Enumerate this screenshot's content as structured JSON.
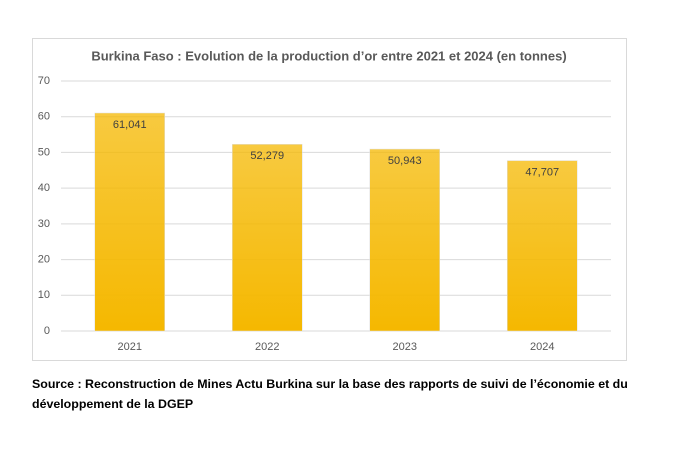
{
  "chart_data": {
    "type": "bar",
    "title": "Burkina Faso : Evolution de la production d’or entre 2021 et 2024 (en tonnes)",
    "categories": [
      "2021",
      "2022",
      "2023",
      "2024"
    ],
    "values": [
      61.041,
      52.279,
      50.943,
      47.707
    ],
    "value_labels": [
      "61,041",
      "52,279",
      "50,943",
      "47,707"
    ],
    "color": "#f5b800",
    "ylim": [
      0,
      70
    ],
    "yticks": [
      0,
      10,
      20,
      30,
      40,
      50,
      60,
      70
    ],
    "grid": true
  },
  "source": "Source : Reconstruction de Mines Actu Burkina sur la base des rapports de suivi de l’économie et du développement de la DGEP"
}
